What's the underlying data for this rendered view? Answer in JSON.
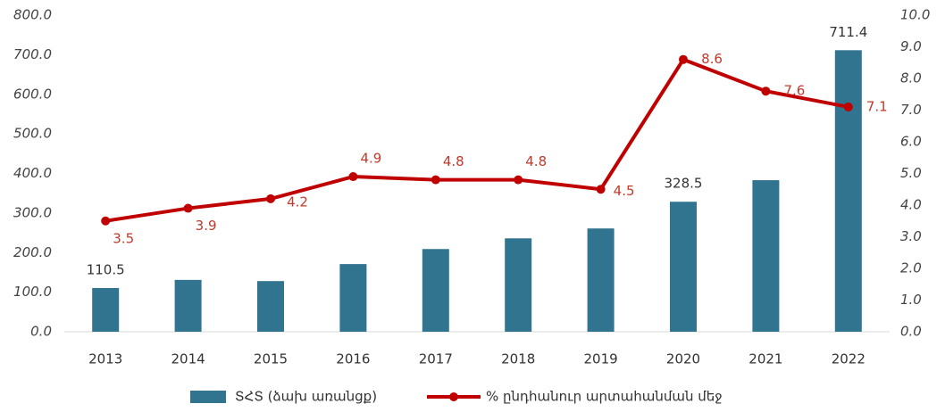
{
  "chart_data": {
    "type": "bar_line",
    "categories": [
      "2013",
      "2014",
      "2015",
      "2016",
      "2017",
      "2018",
      "2019",
      "2020",
      "2021",
      "2022"
    ],
    "series": [
      {
        "name": "ՏՀՏ (ձախ առանցք)",
        "type": "bar",
        "color": "#31748f",
        "values": [
          110.5,
          131,
          128,
          171,
          209,
          236,
          261,
          328.5,
          383,
          711.4
        ],
        "value_labels": [
          "110.5",
          null,
          null,
          null,
          null,
          null,
          null,
          "328.5",
          null,
          "711.4"
        ]
      },
      {
        "name": "% ընդհանուր արտահանման մեջ",
        "type": "line",
        "axis": "y2",
        "color": "#c00000",
        "values": [
          3.5,
          3.9,
          4.2,
          4.9,
          4.8,
          4.8,
          4.5,
          8.6,
          7.6,
          7.1
        ]
      }
    ],
    "ylim": [
      0,
      800
    ],
    "yticks": [
      {
        "value": 0,
        "label": "0.0"
      },
      {
        "value": 100,
        "label": "100.0"
      },
      {
        "value": 200,
        "label": "200.0"
      },
      {
        "value": 300,
        "label": "300.0"
      },
      {
        "value": 400,
        "label": "400.0"
      },
      {
        "value": 500,
        "label": "500.0"
      },
      {
        "value": 600,
        "label": "600.0"
      },
      {
        "value": 700,
        "label": "700.0"
      },
      {
        "value": 800,
        "label": "800.0"
      }
    ],
    "y2lim": [
      0,
      10
    ],
    "y2ticks": [
      {
        "value": 0,
        "label": "0.0"
      },
      {
        "value": 1,
        "label": "1.0"
      },
      {
        "value": 2,
        "label": "2.0"
      },
      {
        "value": 3,
        "label": "3.0"
      },
      {
        "value": 4,
        "label": "4.0"
      },
      {
        "value": 5,
        "label": "5.0"
      },
      {
        "value": 6,
        "label": "6.0"
      },
      {
        "value": 7,
        "label": "7.0"
      },
      {
        "value": 8,
        "label": "8.0"
      },
      {
        "value": 9,
        "label": "9.0"
      },
      {
        "value": 10,
        "label": "10.0"
      }
    ],
    "grid": false,
    "legend": "bottom"
  }
}
